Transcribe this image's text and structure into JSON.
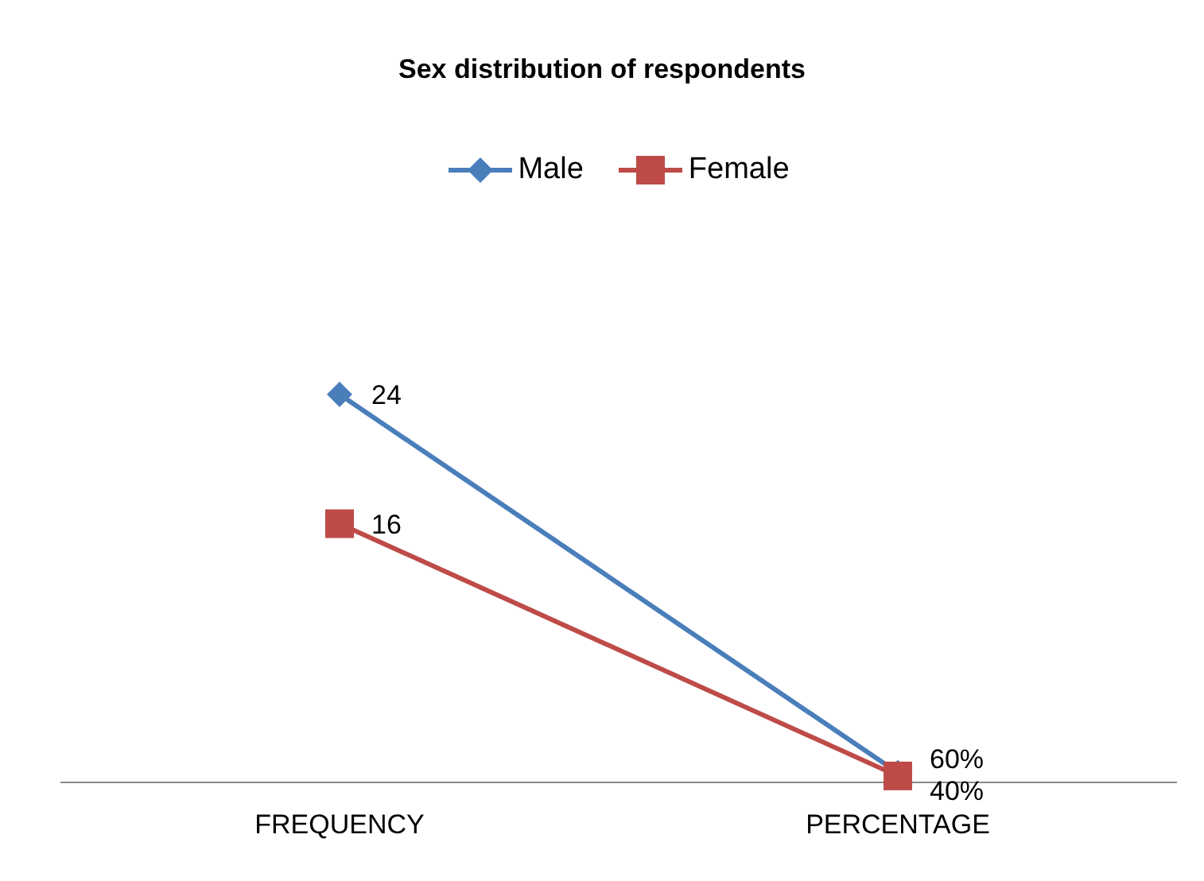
{
  "chart_data": {
    "type": "line",
    "title": "Sex distribution of respondents",
    "categories": [
      "FREQUENCY",
      "PERCENTAGE"
    ],
    "series": [
      {
        "name": "Male",
        "color": "#4a7ebb",
        "values": [
          24,
          0.6
        ],
        "value_labels": [
          "24",
          "60%"
        ],
        "marker": "diamond"
      },
      {
        "name": "Female",
        "color": "#be4b48",
        "values": [
          16,
          0.4
        ],
        "value_labels": [
          "16",
          "40%"
        ],
        "marker": "square"
      }
    ],
    "tick_labels": "x",
    "legend": "top",
    "grid": false
  }
}
